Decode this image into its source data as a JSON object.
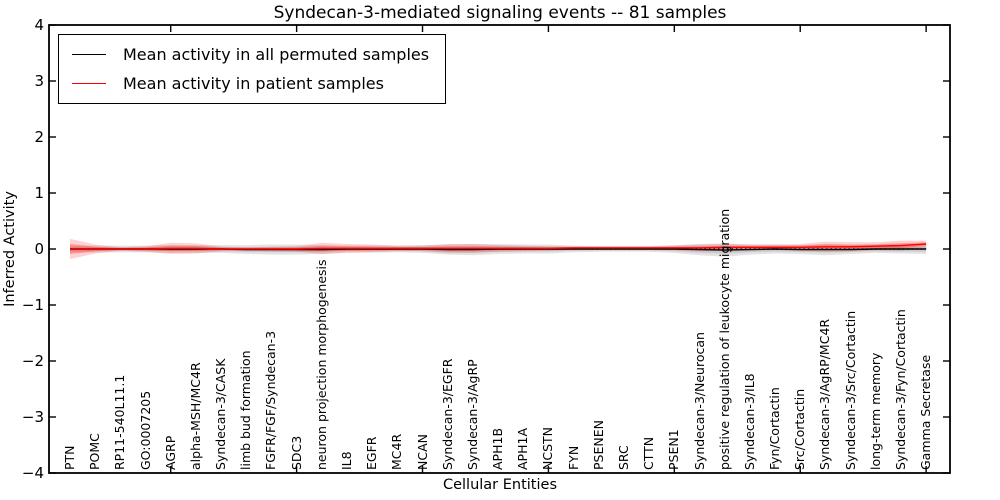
{
  "title": "Syndecan-3-mediated signaling events -- 81 samples",
  "axes": {
    "xlabel": "Cellular Entities",
    "ylabel": "Inferred Activity",
    "yticks": [
      {
        "v": 4,
        "label": "4"
      },
      {
        "v": 3,
        "label": "3"
      },
      {
        "v": 2,
        "label": "2"
      },
      {
        "v": 1,
        "label": "1"
      },
      {
        "v": 0,
        "label": "0"
      },
      {
        "v": -1,
        "label": "−1"
      },
      {
        "v": -2,
        "label": "−2"
      },
      {
        "v": -3,
        "label": "−3"
      },
      {
        "v": -4,
        "label": "−4"
      }
    ]
  },
  "chart_data": {
    "type": "line",
    "title": "Syndecan-3-mediated signaling events -- 81 samples",
    "xlabel": "Cellular Entities",
    "ylabel": "Inferred Activity",
    "ylim": [
      -4,
      4
    ],
    "grid": false,
    "legend_position": "upper left",
    "zero_reference_line": 0,
    "categories": [
      "PTN",
      "POMC",
      "RP11-540L11.1",
      "GO:0007205",
      "AGRP",
      "alpha-MSH/MC4R",
      "Syndecan-3/CASK",
      "limb bud formation",
      "FGFR/FGF/Syndecan-3",
      "SDC3",
      "neuron projection morphogenesis",
      "IL8",
      "EGFR",
      "MC4R",
      "NCAN",
      "Syndecan-3/EGFR",
      "Syndecan-3/AgRP",
      "APH1B",
      "APH1A",
      "NCSTN",
      "FYN",
      "PSENEN",
      "SRC",
      "CTTN",
      "PSEN1",
      "Syndecan-3/Neurocan",
      "positive regulation of leukocyte migration",
      "Syndecan-3/IL8",
      "Fyn/Cortactin",
      "Src/Cortactin",
      "Syndecan-3/AgRP/MC4R",
      "Syndecan-3/Src/Cortactin",
      "long-term memory",
      "Syndecan-3/Fyn/Cortactin",
      "Gamma Secretase"
    ],
    "series": [
      {
        "name": "Mean activity in all permuted samples",
        "color": "#000000",
        "band_color": "#000000",
        "values": [
          0.0,
          0.0,
          0.0,
          0.0,
          0.0,
          0.0,
          0.0,
          -0.01,
          -0.01,
          -0.01,
          -0.01,
          0.0,
          0.0,
          0.0,
          0.0,
          -0.01,
          -0.01,
          0.0,
          0.0,
          0.0,
          0.0,
          0.0,
          0.0,
          0.0,
          0.0,
          -0.01,
          -0.02,
          -0.01,
          0.0,
          -0.01,
          -0.01,
          -0.01,
          0.0,
          0.0,
          0.0
        ],
        "std": [
          0.06,
          0.06,
          0.06,
          0.06,
          0.07,
          0.07,
          0.07,
          0.08,
          0.09,
          0.09,
          0.08,
          0.06,
          0.06,
          0.06,
          0.07,
          0.09,
          0.1,
          0.09,
          0.08,
          0.08,
          0.06,
          0.05,
          0.05,
          0.05,
          0.07,
          0.1,
          0.12,
          0.09,
          0.08,
          0.08,
          0.1,
          0.08,
          0.07,
          0.08,
          0.09
        ]
      },
      {
        "name": "Mean activity in patient samples",
        "color": "#ff0000",
        "band_color": "#ff0000",
        "values": [
          0.0,
          0.0,
          0.0,
          0.0,
          0.01,
          0.01,
          0.0,
          0.0,
          0.0,
          0.0,
          0.01,
          0.01,
          0.01,
          0.01,
          0.01,
          0.01,
          0.01,
          0.01,
          0.01,
          0.01,
          0.02,
          0.02,
          0.02,
          0.02,
          0.02,
          0.02,
          0.03,
          0.03,
          0.03,
          0.03,
          0.04,
          0.04,
          0.05,
          0.06,
          0.09
        ],
        "std": [
          0.18,
          0.08,
          0.03,
          0.05,
          0.1,
          0.09,
          0.04,
          0.03,
          0.04,
          0.05,
          0.1,
          0.08,
          0.07,
          0.05,
          0.05,
          0.08,
          0.08,
          0.06,
          0.05,
          0.04,
          0.03,
          0.03,
          0.03,
          0.03,
          0.04,
          0.06,
          0.06,
          0.05,
          0.05,
          0.06,
          0.09,
          0.08,
          0.07,
          0.09,
          0.06
        ]
      }
    ]
  },
  "colors": {
    "patient_line": "#ff0000",
    "permuted_line": "#000000",
    "axis": "#000000",
    "background": "#ffffff"
  }
}
